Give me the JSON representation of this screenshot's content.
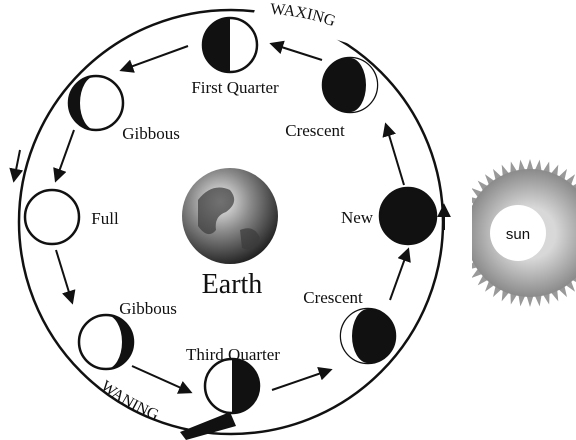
{
  "orbit": {
    "waxing": "WAXING",
    "waning": "WANING"
  },
  "phases": [
    {
      "label": "First Quarter"
    },
    {
      "label": "Crescent"
    },
    {
      "label": "New"
    },
    {
      "label": "Crescent"
    },
    {
      "label": "Third Quarter"
    },
    {
      "label": "Gibbous"
    },
    {
      "label": "Full"
    },
    {
      "label": "Gibbous"
    }
  ],
  "earth": {
    "label": "Earth"
  },
  "sun": {
    "label": "sun"
  }
}
